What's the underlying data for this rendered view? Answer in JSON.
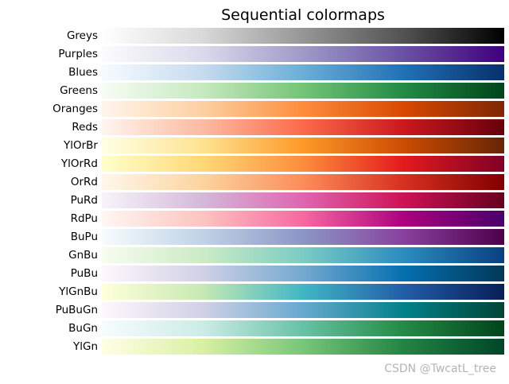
{
  "chart_data": {
    "type": "heatmap",
    "title": "Sequential colormaps",
    "xlabel": "",
    "ylabel": "",
    "grid": false,
    "colormaps": [
      {
        "name": "Greys",
        "colors": [
          "#ffffff",
          "#d9d9d9",
          "#969696",
          "#525252",
          "#000000"
        ]
      },
      {
        "name": "Purples",
        "colors": [
          "#fcfbfd",
          "#dadaeb",
          "#9e9ac8",
          "#6a51a3",
          "#3f007d"
        ]
      },
      {
        "name": "Blues",
        "colors": [
          "#f7fbff",
          "#c6dbef",
          "#6baed6",
          "#2171b5",
          "#08306b"
        ]
      },
      {
        "name": "Greens",
        "colors": [
          "#f7fcf5",
          "#c7e9c0",
          "#74c476",
          "#238b45",
          "#00441b"
        ]
      },
      {
        "name": "Oranges",
        "colors": [
          "#fff5eb",
          "#fdd0a2",
          "#fd8d3c",
          "#d94801",
          "#7f2704"
        ]
      },
      {
        "name": "Reds",
        "colors": [
          "#fff5f0",
          "#fcbba1",
          "#fb6a4a",
          "#cb181d",
          "#67000d"
        ]
      },
      {
        "name": "YlOrBr",
        "colors": [
          "#ffffe5",
          "#fee391",
          "#fe9929",
          "#cc4c02",
          "#662506"
        ]
      },
      {
        "name": "YlOrRd",
        "colors": [
          "#ffffcc",
          "#fed976",
          "#fd8d3c",
          "#e31a1c",
          "#800026"
        ]
      },
      {
        "name": "OrRd",
        "colors": [
          "#fff7ec",
          "#fdd49e",
          "#fc8d59",
          "#d7301f",
          "#7f0000"
        ]
      },
      {
        "name": "PuRd",
        "colors": [
          "#f7f4f9",
          "#d4b9da",
          "#df65b0",
          "#ce1256",
          "#67001f"
        ]
      },
      {
        "name": "RdPu",
        "colors": [
          "#fff7f3",
          "#fcc5c0",
          "#f768a1",
          "#ae017e",
          "#49006a"
        ]
      },
      {
        "name": "BuPu",
        "colors": [
          "#f7fcfd",
          "#bfd3e6",
          "#8c96c6",
          "#88419d",
          "#4d004b"
        ]
      },
      {
        "name": "GnBu",
        "colors": [
          "#f7fcf0",
          "#ccebc5",
          "#7bccc4",
          "#2b8cbe",
          "#084081"
        ]
      },
      {
        "name": "PuBu",
        "colors": [
          "#fff7fb",
          "#d0d1e6",
          "#74a9cf",
          "#0570b0",
          "#023858"
        ]
      },
      {
        "name": "YlGnBu",
        "colors": [
          "#ffffd9",
          "#c7e9b4",
          "#41b6c4",
          "#225ea8",
          "#081d58"
        ]
      },
      {
        "name": "PuBuGn",
        "colors": [
          "#fff7fb",
          "#d0d1e6",
          "#67a9cf",
          "#02818a",
          "#014636"
        ]
      },
      {
        "name": "BuGn",
        "colors": [
          "#f7fcfd",
          "#ccece6",
          "#66c2a4",
          "#238b45",
          "#00441b"
        ]
      },
      {
        "name": "YlGn",
        "colors": [
          "#ffffe5",
          "#d9f0a3",
          "#78c679",
          "#238443",
          "#004529"
        ]
      }
    ]
  },
  "watermark": "CSDN @TwcatL_tree"
}
